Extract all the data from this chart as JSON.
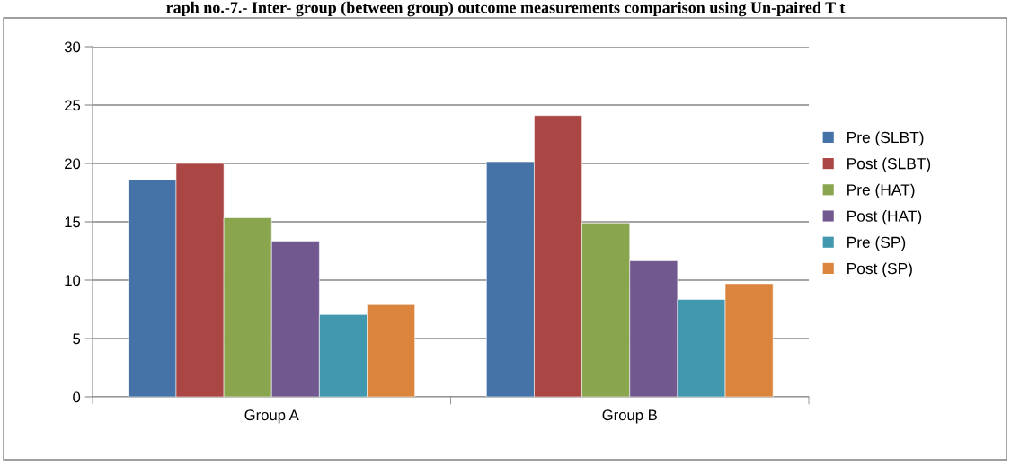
{
  "chart_data": {
    "type": "bar",
    "title": "raph no.-7.- Inter- group (between group) outcome measurements comparison using Un-paired T t",
    "categories": [
      "Group A",
      "Group B"
    ],
    "series": [
      {
        "name": "Pre (SLBT)",
        "color": "#4572a7",
        "values": [
          18.6,
          20.15
        ]
      },
      {
        "name": "Post (SLBT)",
        "color": "#aa4643",
        "values": [
          20.0,
          24.1
        ]
      },
      {
        "name": "Pre (HAT)",
        "color": "#89a54e",
        "values": [
          15.35,
          14.9
        ]
      },
      {
        "name": "Post (HAT)",
        "color": "#71588f",
        "values": [
          13.35,
          11.65
        ]
      },
      {
        "name": "Pre (SP)",
        "color": "#4198af",
        "values": [
          7.05,
          8.35
        ]
      },
      {
        "name": "Post (SP)",
        "color": "#db843d",
        "values": [
          7.9,
          9.7
        ]
      }
    ],
    "ylim": [
      0,
      30
    ],
    "yticks": [
      0,
      5,
      10,
      15,
      20,
      25,
      30
    ],
    "grid": "y",
    "legend": "right"
  }
}
